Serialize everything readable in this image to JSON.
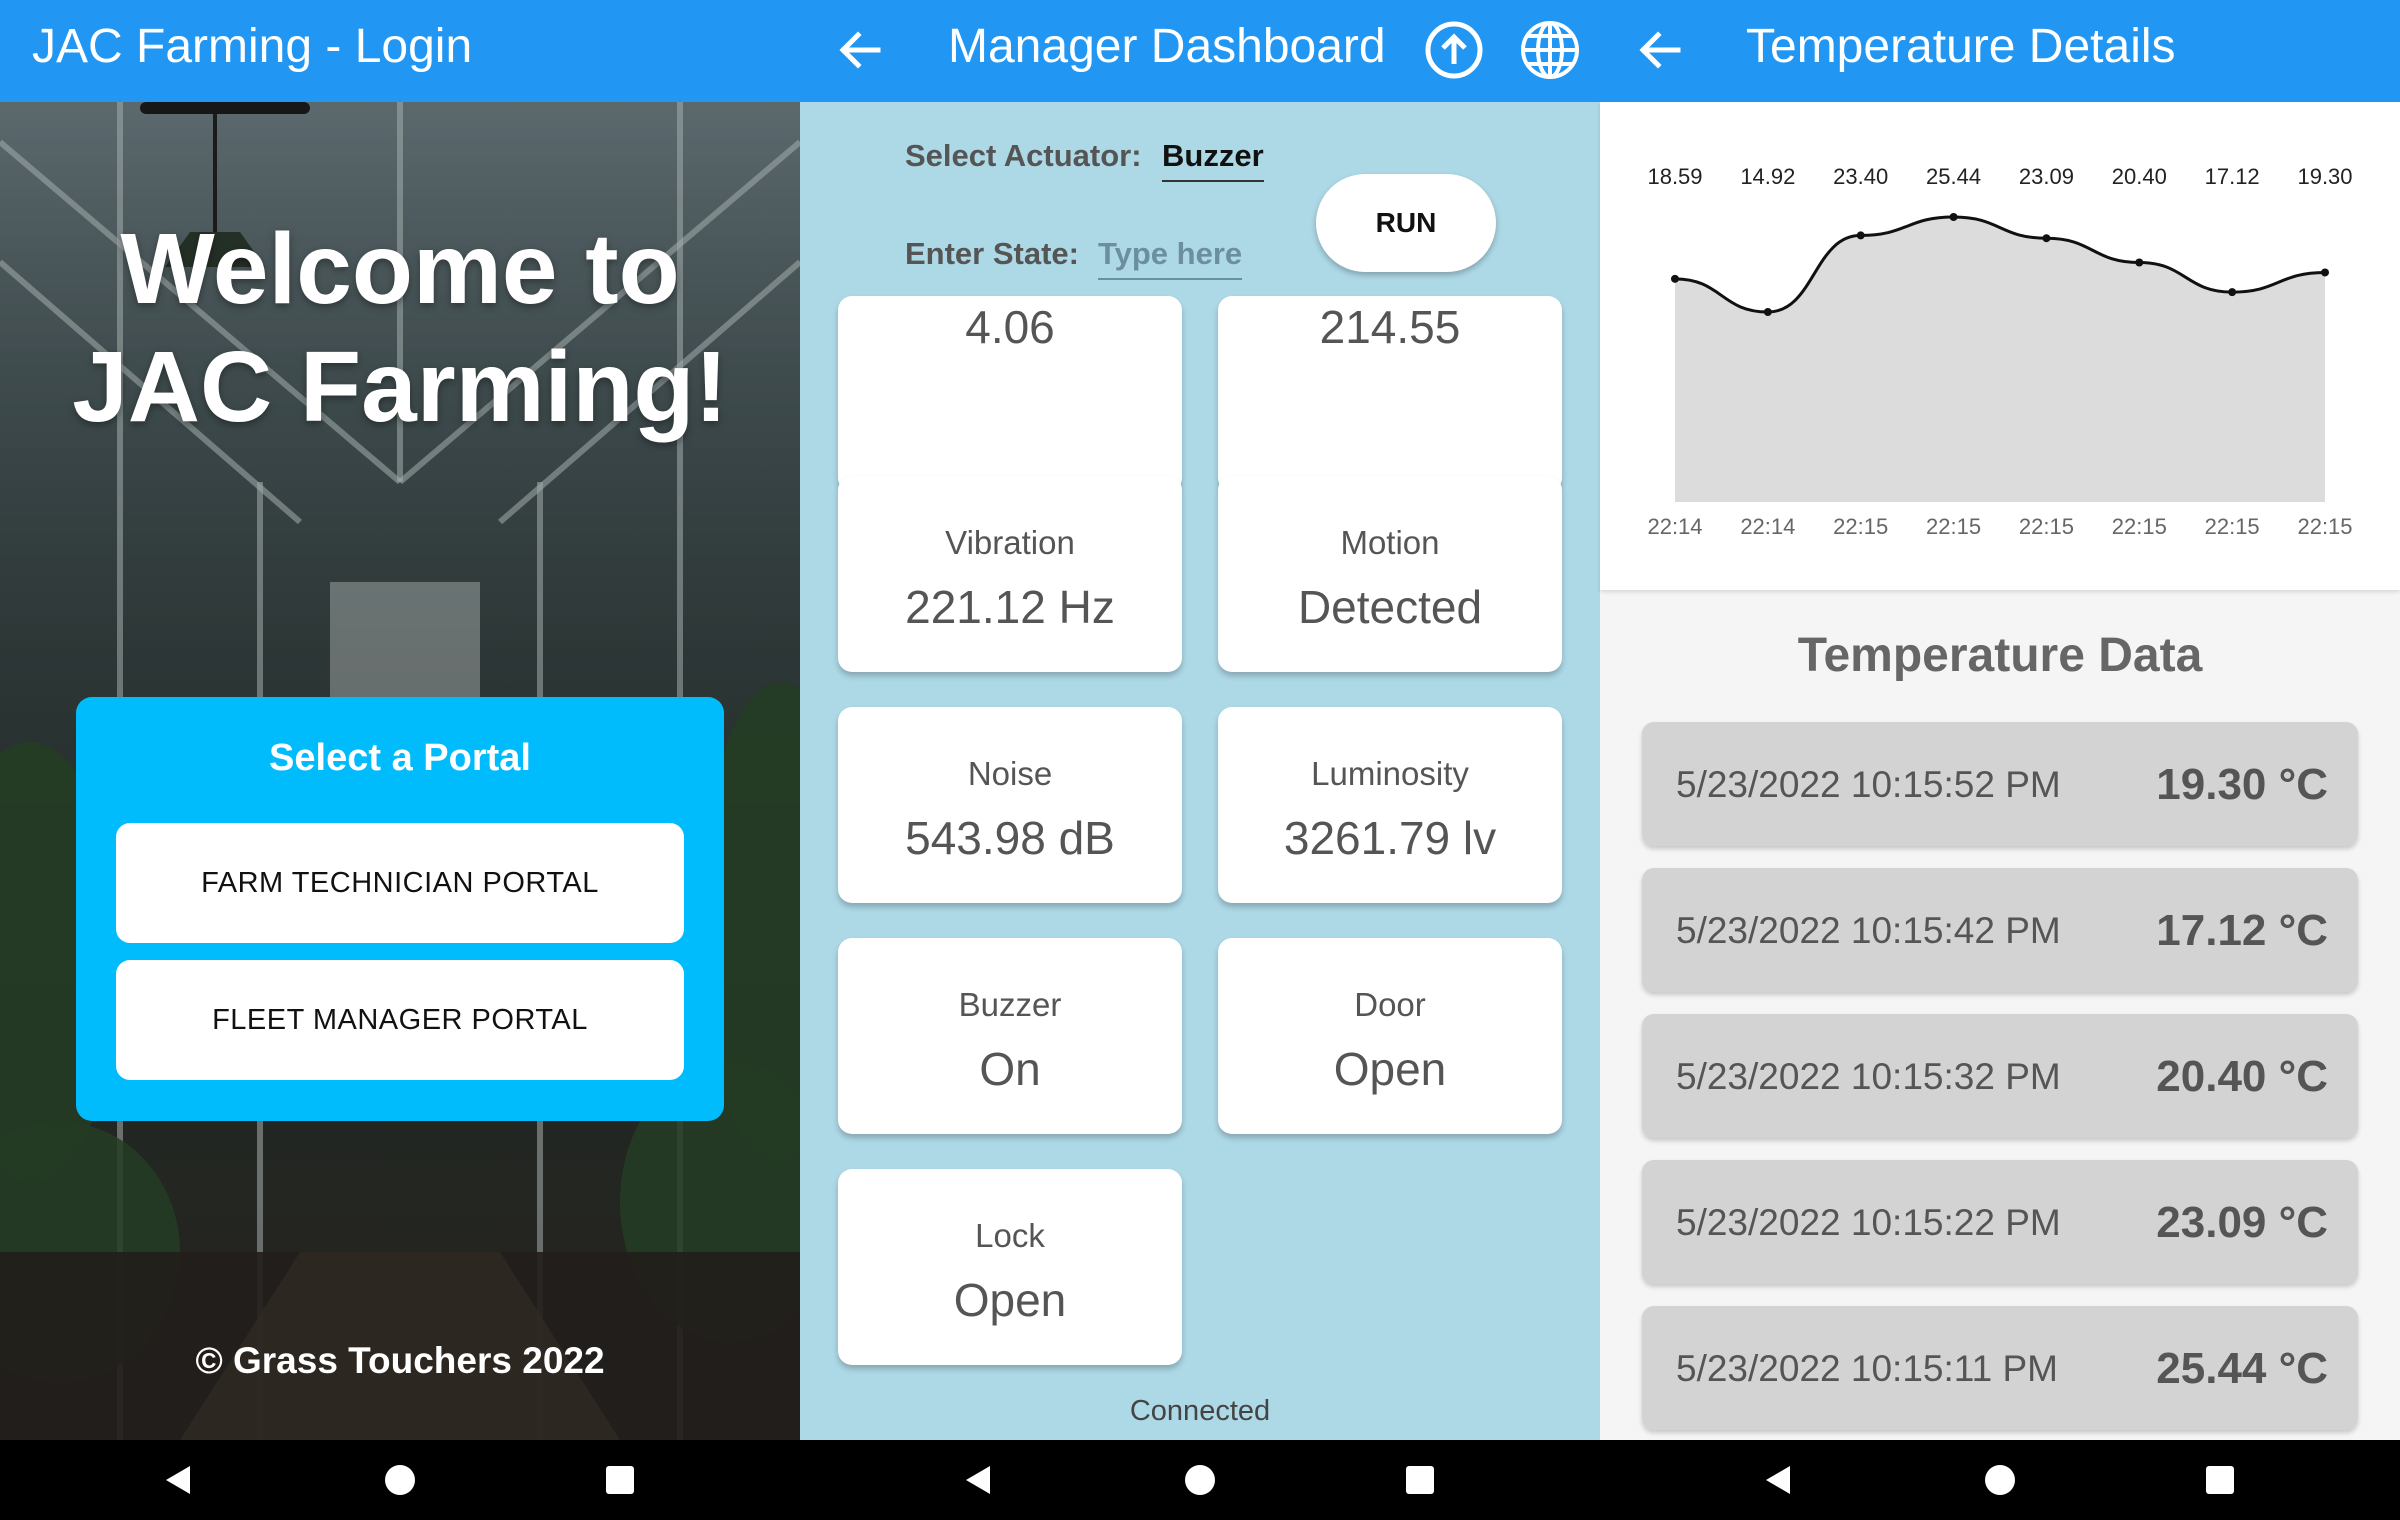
{
  "login": {
    "title": "JAC Farming - Login",
    "welcome_line1": "Welcome to",
    "welcome_line2": "JAC Farming!",
    "portal_title": "Select a Portal",
    "technician_button": "FARM TECHNICIAN PORTAL",
    "manager_button": "FLEET MANAGER PORTAL",
    "copyright": "© Grass Touchers 2022"
  },
  "dashboard": {
    "title": "Manager Dashboard",
    "actuator_label": "Select Actuator:",
    "actuator_value": "Buzzer",
    "state_label": "Enter State:",
    "state_placeholder": "Type here",
    "run_button": "RUN",
    "tiles": [
      {
        "label": "",
        "value": "4.06"
      },
      {
        "label": "",
        "value": "214.55"
      },
      {
        "label": "Vibration",
        "value": "221.12 Hz"
      },
      {
        "label": "Motion",
        "value": "Detected"
      },
      {
        "label": "Noise",
        "value": "543.98 dB"
      },
      {
        "label": "Luminosity",
        "value": "3261.79 lv"
      },
      {
        "label": "Buzzer",
        "value": "On"
      },
      {
        "label": "Door",
        "value": "Open"
      },
      {
        "label": "Lock",
        "value": "Open"
      }
    ],
    "status": "Connected"
  },
  "temperature": {
    "title": "Temperature Details",
    "section_title": "Temperature Data",
    "readings": [
      {
        "time": "5/23/2022 10:15:52 PM",
        "value": "19.30 °C"
      },
      {
        "time": "5/23/2022 10:15:42 PM",
        "value": "17.12 °C"
      },
      {
        "time": "5/23/2022 10:15:32 PM",
        "value": "20.40 °C"
      },
      {
        "time": "5/23/2022 10:15:22 PM",
        "value": "23.09 °C"
      },
      {
        "time": "5/23/2022 10:15:11 PM",
        "value": "25.44 °C"
      }
    ]
  },
  "colors": {
    "appbar": "#2196f3",
    "portal_card": "#00bcfc",
    "dashboard_bg": "#add8e6",
    "row_bg": "#d3d3d3"
  },
  "icons": {
    "back": "arrow-left-icon",
    "upload": "upload-circle-icon",
    "globe": "globe-icon",
    "nav_back": "triangle-back-icon",
    "nav_home": "circle-home-icon",
    "nav_recent": "square-recent-icon"
  },
  "chart_data": {
    "type": "area",
    "x": [
      "22:14",
      "22:14",
      "22:15",
      "22:15",
      "22:15",
      "22:15",
      "22:15",
      "22:15"
    ],
    "values": [
      18.59,
      14.92,
      23.4,
      25.44,
      23.09,
      20.4,
      17.12,
      19.3
    ],
    "data_labels": [
      "18.59",
      "14.92",
      "23.40",
      "25.44",
      "23.09",
      "20.40",
      "17.12",
      "19.30"
    ],
    "ylim": [
      0,
      25.44
    ],
    "grid": false,
    "title": "",
    "xlabel": "",
    "ylabel": ""
  }
}
